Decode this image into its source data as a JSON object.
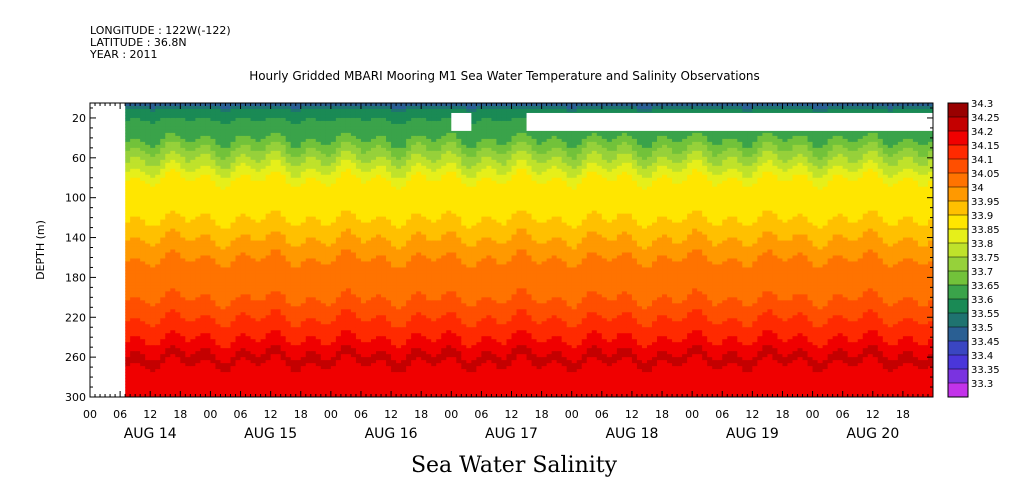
{
  "header": {
    "longitude": "LONGITUDE : 122W(-122)",
    "latitude": "LATITUDE : 36.8N",
    "year": "YEAR : 2011"
  },
  "chart_data": {
    "type": "heatmap",
    "title": "Hourly Gridded MBARI Mooring M1 Sea Water Temperature and Salinity Observations",
    "xlabel": "Sea Water Salinity",
    "ylabel": "DEPTH (m)",
    "x_unit": "hours",
    "x_start": "AUG 14 00",
    "xlim": [
      0,
      168
    ],
    "ylim": [
      300,
      5
    ],
    "y_ticks": [
      20,
      60,
      100,
      140,
      180,
      220,
      260,
      300
    ],
    "x_hour_ticks": [
      "00",
      "06",
      "12",
      "18",
      "00",
      "06",
      "12",
      "18",
      "00",
      "06",
      "12",
      "18",
      "00",
      "06",
      "12",
      "18",
      "00",
      "06",
      "12",
      "18",
      "00",
      "06",
      "12",
      "18",
      "00",
      "06",
      "12",
      "18"
    ],
    "x_day_labels": [
      "AUG 14",
      "AUG 15",
      "AUG 16",
      "AUG 17",
      "AUG 18",
      "AUG 19",
      "AUG 20"
    ],
    "data_start_hour": 7,
    "colorbar": {
      "levels": [
        "34.3",
        "34.25",
        "34.2",
        "34.15",
        "34.1",
        "34.05",
        "34",
        "33.95",
        "33.9",
        "33.85",
        "33.8",
        "33.75",
        "33.7",
        "33.65",
        "33.6",
        "33.55",
        "33.5",
        "33.45",
        "33.4",
        "33.35",
        "33.3"
      ],
      "colors": [
        "#990000",
        "#c40000",
        "#f00000",
        "#ff2a00",
        "#ff4f00",
        "#ff7300",
        "#ff9900",
        "#ffc000",
        "#ffe600",
        "#e6ef1a",
        "#bfe22b",
        "#96d13a",
        "#72c23a",
        "#3aa34a",
        "#1a8a55",
        "#1f7370",
        "#2a5f93",
        "#3a46c2",
        "#4a36da",
        "#7a33e0",
        "#c333ea"
      ]
    },
    "profile": [
      {
        "depth": 5,
        "salinity": 33.5
      },
      {
        "depth": 10,
        "salinity": 33.6
      },
      {
        "depth": 20,
        "salinity": 33.65
      },
      {
        "depth": 40,
        "salinity": 33.7
      },
      {
        "depth": 60,
        "salinity": 33.8
      },
      {
        "depth": 80,
        "salinity": 33.9
      },
      {
        "depth": 100,
        "salinity": 33.9
      },
      {
        "depth": 120,
        "salinity": 33.95
      },
      {
        "depth": 140,
        "salinity": 34.0
      },
      {
        "depth": 160,
        "salinity": 34.05
      },
      {
        "depth": 180,
        "salinity": 34.05
      },
      {
        "depth": 200,
        "salinity": 34.1
      },
      {
        "depth": 220,
        "salinity": 34.15
      },
      {
        "depth": 240,
        "salinity": 34.2
      },
      {
        "depth": 255,
        "salinity": 34.25
      },
      {
        "depth": 265,
        "salinity": 34.25
      },
      {
        "depth": 280,
        "salinity": 34.2
      },
      {
        "depth": 300,
        "salinity": 34.2
      }
    ],
    "missing_regions": [
      {
        "hours": [
          0,
          7
        ],
        "depth": [
          5,
          300
        ]
      },
      {
        "hours": [
          72,
          76
        ],
        "depth": [
          15,
          33
        ]
      },
      {
        "hours": [
          87,
          168
        ],
        "depth": [
          15,
          33
        ]
      }
    ]
  }
}
